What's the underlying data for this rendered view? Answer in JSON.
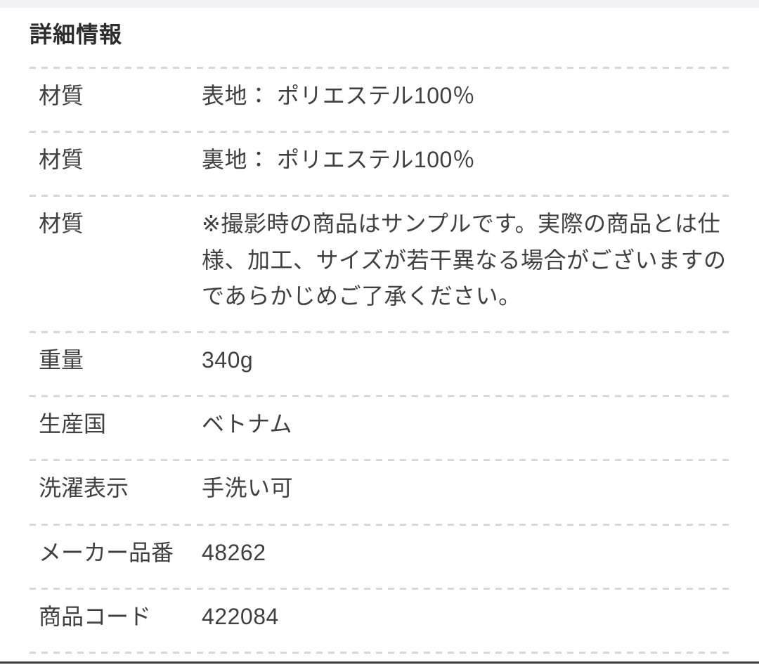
{
  "section": {
    "title": "詳細情報"
  },
  "spec_table": {
    "rows": [
      {
        "label": "材質",
        "value": "表地： ポリエステル100％"
      },
      {
        "label": "材質",
        "value": "裏地： ポリエステル100％"
      },
      {
        "label": "材質",
        "value": "※撮影時の商品はサンプルです。実際の商品とは仕様、加工、サイズが若干異なる場合がございますのであらかじめご了承ください。"
      },
      {
        "label": "重量",
        "value": "340g"
      },
      {
        "label": "生産国",
        "value": "ベトナム"
      },
      {
        "label": "洗濯表示",
        "value": "手洗い可"
      },
      {
        "label": "メーカー品番",
        "value": "48262"
      },
      {
        "label": "商品コード",
        "value": "422084"
      }
    ]
  },
  "colors": {
    "background": "#ffffff",
    "top_strip": "#f2f2f6",
    "title_text": "#2d2d2f",
    "body_text": "#404042",
    "divider_dash": "#d7d7d9",
    "bottom_bar": "#3a3a3c"
  }
}
